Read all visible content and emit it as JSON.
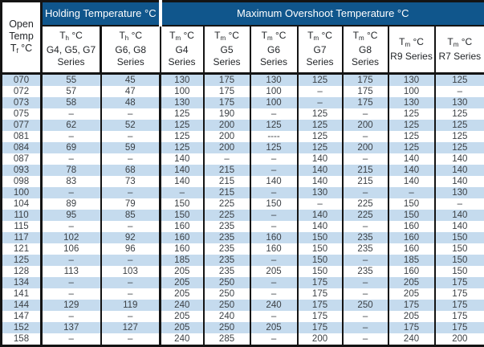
{
  "colors": {
    "header_blue": "#10568C",
    "row_alt_blue": "#C5DBEE",
    "border_black": "#141414",
    "text_dark": "#3C4146"
  },
  "table": {
    "open_temp_header": {
      "line1": "Open",
      "line2": "Temp",
      "symbol": "T",
      "subscript": "f",
      "unit": " °C"
    },
    "holding_band_label": "Holding Temperature °C",
    "overshoot_band_label": "Maximum Overshoot Temperature °C",
    "sub_columns": [
      {
        "symbol": "T",
        "subscript": "h",
        "unit": " °C",
        "series_lines": [
          "G4, G5, G7",
          "Series"
        ]
      },
      {
        "symbol": "T",
        "subscript": "h",
        "unit": " °C",
        "series_lines": [
          "G6, G8",
          "Series"
        ]
      },
      {
        "symbol": "T",
        "subscript": "m",
        "unit": " °C",
        "series_lines": [
          "G4",
          "Series"
        ]
      },
      {
        "symbol": "T",
        "subscript": "m",
        "unit": " °C",
        "series_lines": [
          "G5",
          "Series"
        ]
      },
      {
        "symbol": "T",
        "subscript": "m",
        "unit": " °C",
        "series_lines": [
          "G6",
          "Series"
        ]
      },
      {
        "symbol": "T",
        "subscript": "m",
        "unit": " °C",
        "series_lines": [
          "G7",
          "Series"
        ]
      },
      {
        "symbol": "T",
        "subscript": "m",
        "unit": " °C",
        "series_lines": [
          "G8",
          "Series"
        ]
      },
      {
        "symbol": "T",
        "subscript": "m",
        "unit": " °C",
        "series_lines": [
          "R9 Series"
        ]
      },
      {
        "symbol": "T",
        "subscript": "m",
        "unit": " °C",
        "series_lines": [
          "R7 Series"
        ]
      }
    ],
    "rows": [
      [
        "070",
        "55",
        "45",
        "130",
        "175",
        "130",
        "125",
        "175",
        "130",
        "125"
      ],
      [
        "072",
        "57",
        "47",
        "100",
        "175",
        "100",
        "–",
        "175",
        "100",
        "–"
      ],
      [
        "073",
        "58",
        "48",
        "130",
        "175",
        "100",
        "–",
        "175",
        "130",
        "130"
      ],
      [
        "075",
        "–",
        "–",
        "125",
        "190",
        "–",
        "125",
        "–",
        "125",
        "125"
      ],
      [
        "077",
        "62",
        "52",
        "125",
        "200",
        "125",
        "125",
        "200",
        "125",
        "125"
      ],
      [
        "081",
        "–",
        "–",
        "125",
        "200",
        "----",
        "125",
        "–",
        "125",
        "125"
      ],
      [
        "084",
        "69",
        "59",
        "125",
        "200",
        "125",
        "125",
        "200",
        "125",
        "125"
      ],
      [
        "087",
        "–",
        "–",
        "140",
        "–",
        "–",
        "140",
        "–",
        "140",
        "140"
      ],
      [
        "093",
        "78",
        "68",
        "140",
        "215",
        "–",
        "140",
        "215",
        "140",
        "140"
      ],
      [
        "098",
        "83",
        "73",
        "140",
        "215",
        "140",
        "140",
        "215",
        "140",
        "140"
      ],
      [
        "100",
        "–",
        "–",
        "–",
        "215",
        "–",
        "130",
        "–",
        "–",
        "130"
      ],
      [
        "104",
        "89",
        "79",
        "150",
        "225",
        "150",
        "–",
        "225",
        "150",
        "–"
      ],
      [
        "110",
        "95",
        "85",
        "150",
        "225",
        "–",
        "140",
        "225",
        "150",
        "140"
      ],
      [
        "115",
        "–",
        "–",
        "160",
        "235",
        "–",
        "140",
        "–",
        "160",
        "140"
      ],
      [
        "117",
        "102",
        "92",
        "160",
        "235",
        "160",
        "150",
        "235",
        "160",
        "150"
      ],
      [
        "121",
        "106",
        "96",
        "160",
        "235",
        "160",
        "150",
        "235",
        "160",
        "150"
      ],
      [
        "125",
        "–",
        "–",
        "185",
        "235",
        "–",
        "150",
        "–",
        "185",
        "150"
      ],
      [
        "128",
        "113",
        "103",
        "205",
        "235",
        "205",
        "150",
        "235",
        "160",
        "150"
      ],
      [
        "134",
        "–",
        "–",
        "205",
        "250",
        "–",
        "175",
        "–",
        "205",
        "175"
      ],
      [
        "141",
        "–",
        "–",
        "205",
        "250",
        "–",
        "175",
        "–",
        "205",
        "175"
      ],
      [
        "144",
        "129",
        "119",
        "240",
        "250",
        "240",
        "175",
        "250",
        "175",
        "175"
      ],
      [
        "147",
        "–",
        "–",
        "205",
        "240",
        "–",
        "175",
        "–",
        "205",
        "175"
      ],
      [
        "152",
        "137",
        "127",
        "205",
        "250",
        "205",
        "175",
        "–",
        "175",
        "175"
      ],
      [
        "158",
        "–",
        "–",
        "240",
        "285",
        "–",
        "200",
        "–",
        "240",
        "200"
      ]
    ]
  }
}
